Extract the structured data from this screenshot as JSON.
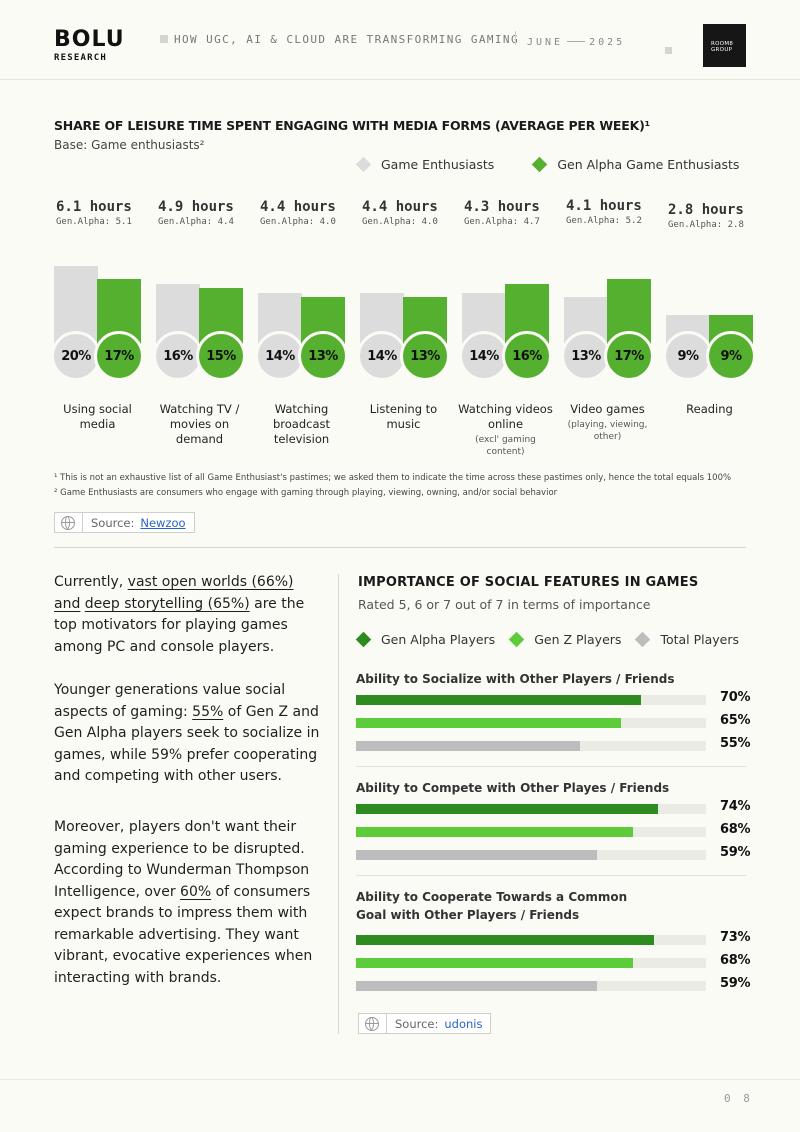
{
  "header": {
    "logo": "BOLU",
    "logo_sub": "RESEARCH",
    "title": "HOW UGC, AI & CLOUD ARE TRANSFORMING GAMING",
    "date_month": "JUNE",
    "date_year": "2025",
    "brand_line1": "ROOM8",
    "brand_line2": "GROUP"
  },
  "section1": {
    "title": "SHARE OF LEISURE TIME SPENT ENGAGING WITH MEDIA FORMS (AVERAGE PER WEEK)¹",
    "subtitle": "Base: Game enthusiasts²",
    "footnote1": "¹ This is not an exhaustive list of all Game Enthusiast's pastimes; we asked them to indicate the time across these pastimes only, hence the total equals 100%",
    "footnote2": "² Game Enthusiasts are consumers who engage with gaming through playing, viewing, owning, and/or social behavior",
    "source_label": "Source:",
    "source_link": "Newzoo"
  },
  "chart_data": [
    {
      "type": "bar",
      "title": "SHARE OF LEISURE TIME SPENT ENGAGING WITH MEDIA FORMS (AVERAGE PER WEEK)¹",
      "categories": [
        "Using social media",
        "Watching TV / movies on demand",
        "Watching broadcast television",
        "Listening to music",
        "Watching videos online",
        "Video games",
        "Reading"
      ],
      "category_notes": [
        "",
        "",
        "",
        "",
        "(excl' gaming content)",
        "(playing, viewing, other)",
        ""
      ],
      "hours_labels": [
        "6.1 hours",
        "4.9 hours",
        "4.4 hours",
        "4.4 hours",
        "4.3 hours",
        "4.1 hours",
        "2.8 hours"
      ],
      "gen_alpha_labels": [
        "Gen.Alpha: 5.1",
        "Gen.Alpha: 4.4",
        "Gen.Alpha: 4.0",
        "Gen.Alpha: 4.0",
        "Gen.Alpha: 4.7",
        "Gen.Alpha: 5.2",
        "Gen.Alpha: 2.8"
      ],
      "series": [
        {
          "name": "Game Enthusiasts",
          "color": "#dcdcdc",
          "values": [
            20,
            16,
            14,
            14,
            14,
            13,
            9
          ],
          "hours": [
            6.1,
            4.9,
            4.4,
            4.4,
            4.3,
            4.1,
            2.8
          ]
        },
        {
          "name": "Gen Alpha Game Enthusiasts",
          "color": "#56b030",
          "values": [
            17,
            15,
            13,
            13,
            16,
            17,
            9
          ],
          "hours": [
            5.1,
            4.4,
            4.0,
            4.0,
            4.7,
            5.2,
            2.8
          ]
        }
      ],
      "value_labels": [
        [
          "20%",
          "16%",
          "14%",
          "14%",
          "14%",
          "13%",
          "9%"
        ],
        [
          "17%",
          "15%",
          "13%",
          "13%",
          "16%",
          "17%",
          "9%"
        ]
      ]
    },
    {
      "type": "bar",
      "orientation": "horizontal",
      "title": "IMPORTANCE OF SOCIAL FEATURES IN GAMES",
      "subtitle": "Rated 5, 6 or 7 out of 7 in terms of importance",
      "xlim": [
        0,
        100
      ],
      "groups": [
        {
          "label": "Ability to Socialize with Other Players / Friends",
          "values": [
            70,
            65,
            55
          ],
          "labels": [
            "70%",
            "65%",
            "55%"
          ]
        },
        {
          "label": "Ability to Compete with Other Playes / Friends",
          "values": [
            74,
            68,
            59
          ],
          "labels": [
            "74%",
            "68%",
            "59%"
          ]
        },
        {
          "label": "Ability to Cooperate Towards a Common Goal with Other Players / Friends",
          "values": [
            73,
            68,
            59
          ],
          "labels": [
            "73%",
            "68%",
            "59%"
          ]
        }
      ],
      "series": [
        {
          "name": "Gen Alpha Players",
          "color": "#2e8b1f"
        },
        {
          "name": "Gen Z Players",
          "color": "#5dcc3a"
        },
        {
          "name": "Total Players",
          "color": "#bdbdbd"
        }
      ]
    }
  ],
  "left_text": {
    "p1_pre": "Currently, ",
    "p1_u1": "vast open worlds (66%) and",
    "p1_u2": "deep storytelling (65%)",
    "p1_post": " are the top motivators for playing games among PC and console players.",
    "p2_pre": "Younger generations value social aspects of gaming: ",
    "p2_u": "55%",
    "p2_post": " of Gen Z and Gen Alpha players seek to socialize in games, while 59% prefer cooperating and competing with other users.",
    "p3_pre": "Moreover, players don't want their gaming experience to be disrupted. According to Wunderman Thompson Intelligence, over ",
    "p3_u": "60%",
    "p3_post": " of consumers expect brands to impress them with remarkable advertising. They want vibrant, evocative experiences when interacting with brands."
  },
  "section2": {
    "source_label": "Source:",
    "source_link": "udonis"
  },
  "page_number": "08"
}
